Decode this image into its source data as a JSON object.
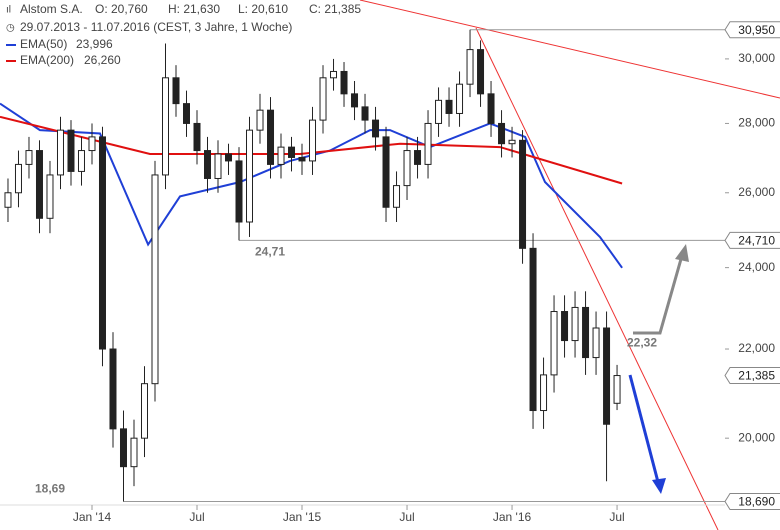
{
  "chart_data": {
    "type": "candlestick",
    "header": {
      "name": "Alstom S.A.",
      "ohlc": [
        "O: 20,760",
        "H: 21,630",
        "L: 20,610",
        "C: 21,385"
      ],
      "period": "29.07.2013 - 11.07.2016 (CEST, 3 Jahre, 1 Woche)"
    },
    "x": [
      2013.6,
      2013.65,
      2013.7,
      2013.75,
      2013.8,
      2013.85,
      2013.9,
      2013.95,
      2014.0,
      2014.05,
      2014.1,
      2014.15,
      2014.2,
      2014.25,
      2014.3,
      2014.35,
      2014.4,
      2014.45,
      2014.5,
      2014.55,
      2014.6,
      2014.65,
      2014.7,
      2014.75,
      2014.8,
      2014.85,
      2014.9,
      2014.95,
      2015.0,
      2015.05,
      2015.1,
      2015.15,
      2015.2,
      2015.25,
      2015.3,
      2015.35,
      2015.4,
      2015.45,
      2015.5,
      2015.55,
      2015.6,
      2015.65,
      2015.7,
      2015.75,
      2015.8,
      2015.85,
      2015.9,
      2015.95,
      2016.0,
      2016.05,
      2016.1,
      2016.15,
      2016.2,
      2016.25,
      2016.3,
      2016.35,
      2016.4,
      2016.45,
      2016.5
    ],
    "open": [
      25.6,
      26.0,
      26.8,
      27.2,
      25.3,
      26.5,
      27.8,
      26.6,
      27.2,
      27.6,
      22.0,
      20.2,
      19.4,
      20.0,
      21.2,
      26.5,
      29.4,
      28.6,
      28.0,
      27.2,
      26.4,
      27.1,
      26.9,
      25.2,
      27.8,
      28.4,
      26.8,
      27.3,
      27.0,
      26.9,
      28.1,
      29.4,
      29.6,
      28.9,
      28.5,
      28.1,
      27.6,
      25.6,
      26.2,
      27.2,
      26.8,
      28.0,
      28.7,
      28.3,
      29.2,
      30.3,
      28.9,
      28.0,
      27.4,
      27.5,
      24.5,
      20.6,
      21.4,
      22.9,
      22.2,
      23.0,
      21.8,
      22.5,
      20.76
    ],
    "high": [
      26.4,
      27.2,
      27.6,
      27.5,
      26.9,
      28.2,
      28.1,
      27.6,
      28.0,
      27.9,
      22.4,
      20.6,
      20.4,
      21.6,
      26.9,
      30.5,
      29.8,
      29.0,
      28.4,
      27.6,
      27.5,
      27.4,
      27.3,
      28.2,
      28.9,
      28.8,
      27.7,
      27.6,
      27.4,
      28.5,
      29.8,
      30.0,
      29.9,
      29.3,
      28.9,
      28.5,
      27.9,
      26.6,
      27.6,
      27.6,
      28.4,
      29.1,
      29.1,
      29.6,
      30.95,
      30.6,
      29.3,
      28.4,
      27.9,
      27.8,
      24.9,
      21.8,
      23.3,
      23.3,
      23.4,
      23.4,
      22.9,
      22.9,
      21.63
    ],
    "low": [
      25.2,
      25.6,
      26.4,
      24.9,
      24.9,
      26.1,
      26.2,
      26.2,
      26.8,
      21.6,
      19.8,
      18.69,
      19.0,
      19.6,
      20.8,
      26.1,
      28.2,
      27.6,
      26.8,
      26.0,
      26.0,
      26.5,
      24.71,
      24.8,
      27.4,
      26.4,
      26.4,
      26.6,
      26.5,
      26.5,
      27.7,
      29.0,
      28.5,
      28.1,
      27.7,
      27.2,
      25.2,
      25.2,
      25.8,
      26.4,
      26.4,
      27.6,
      27.9,
      27.9,
      28.8,
      28.5,
      27.6,
      27.0,
      27.0,
      24.1,
      20.2,
      20.2,
      21.0,
      21.8,
      21.8,
      21.4,
      21.4,
      19.1,
      20.61
    ],
    "close": [
      26.0,
      26.8,
      27.2,
      25.3,
      26.5,
      27.8,
      26.6,
      27.2,
      27.6,
      22.0,
      20.2,
      19.4,
      20.0,
      21.2,
      26.5,
      29.4,
      28.6,
      28.0,
      27.2,
      26.4,
      27.1,
      26.9,
      25.2,
      27.8,
      28.4,
      26.8,
      27.3,
      27.0,
      26.9,
      28.1,
      29.4,
      29.6,
      28.9,
      28.5,
      28.1,
      27.6,
      25.6,
      26.2,
      27.2,
      26.8,
      28.0,
      28.7,
      28.3,
      29.2,
      30.3,
      28.9,
      28.0,
      27.4,
      27.5,
      24.5,
      20.6,
      21.4,
      22.9,
      22.2,
      23.0,
      21.8,
      22.5,
      20.3,
      21.385
    ],
    "color": "#222222",
    "scale": "log",
    "xlim": [
      2013.562,
      2017.014
    ],
    "xticks": [
      {
        "value": 2014.0,
        "label": "Jan '14"
      },
      {
        "value": 2014.5,
        "label": "Jul"
      },
      {
        "value": 2015.0,
        "label": "Jan '15"
      },
      {
        "value": 2015.5,
        "label": "Jul"
      },
      {
        "value": 2016.0,
        "label": "Jan '16"
      },
      {
        "value": 2016.5,
        "label": "Jul"
      }
    ],
    "ylim": [
      18.13,
      31.95
    ],
    "yticks": [
      {
        "value": 20,
        "label": "20,000"
      },
      {
        "value": 22,
        "label": "22,000"
      },
      {
        "value": 24,
        "label": "24,000"
      },
      {
        "value": 26,
        "label": "26,000"
      },
      {
        "value": 28,
        "label": "28,000"
      },
      {
        "value": 30,
        "label": "30,000"
      }
    ],
    "series": [
      {
        "name": "EMA(50)",
        "color": "#1f3fd6",
        "legend_value": {
          "value": 23.996,
          "label": "23,996"
        },
        "x": [
          2013.562,
          2013.752,
          2014.038,
          2014.267,
          2014.419,
          2014.705,
          2014.943,
          2015.133,
          2015.324,
          2015.419,
          2015.61,
          2015.895,
          2016.062,
          2016.157,
          2016.419,
          2016.524
        ],
        "values": [
          28.6,
          27.8,
          27.7,
          24.6,
          25.9,
          26.3,
          26.9,
          27.2,
          27.8,
          27.8,
          27.3,
          28.0,
          27.6,
          26.3,
          24.8,
          23.996
        ]
      },
      {
        "name": "EMA(200)",
        "color": "#e01010",
        "legend_value": {
          "value": 26.26,
          "label": "26,260"
        },
        "x": [
          2013.562,
          2014.276,
          2014.99,
          2015.467,
          2015.943,
          2016.524
        ],
        "values": [
          28.2,
          27.1,
          27.1,
          27.4,
          27.3,
          26.26
        ]
      }
    ],
    "levels": [
      {
        "value": 30.95,
        "label": "30,950",
        "line": true
      },
      {
        "value": 24.71,
        "label": "24,710",
        "line": true
      },
      {
        "value": 21.385,
        "label": "21,385",
        "line": false
      },
      {
        "value": 18.69,
        "label": "18,690",
        "line": true
      }
    ],
    "price_labels": [
      {
        "value": 24.71,
        "label": "24,71"
      },
      {
        "value": 18.69,
        "label": "18,69"
      },
      {
        "value": 22.32,
        "label": "22,32"
      }
    ]
  }
}
